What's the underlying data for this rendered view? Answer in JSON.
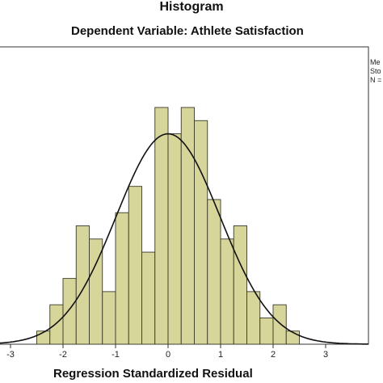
{
  "chart_data": {
    "type": "bar",
    "title": "Histogram",
    "subtitle": "Dependent Variable: Athlete Satisfaction",
    "xlabel": "Regression Standardized Residual",
    "ylabel": "",
    "xlim": [
      -3.25,
      3.6
    ],
    "ylim": [
      0,
      10
    ],
    "x_ticks": [
      "-3",
      "-2",
      "-1",
      "0",
      "1",
      "2",
      "3"
    ],
    "bin_width": 0.25,
    "bin_left_edges": [
      -2.5,
      -2.25,
      -2.0,
      -1.75,
      -1.5,
      -1.25,
      -1.0,
      -0.75,
      -0.5,
      -0.25,
      0.0,
      0.25,
      0.5,
      0.75,
      1.0,
      1.25,
      1.5,
      1.75,
      2.0,
      2.25
    ],
    "values": [
      0.5,
      1.5,
      2.5,
      4.5,
      4,
      2,
      5,
      6,
      3.5,
      9,
      8,
      9,
      8.5,
      5.5,
      4,
      4.5,
      2,
      1,
      1.5,
      0.5
    ],
    "normal_curve": {
      "mean": 0,
      "std": 0.99
    },
    "peak": 8,
    "stats_box": [
      "Me",
      "Sto",
      "N ="
    ],
    "colors": {
      "bar_fill": "#d6d59a",
      "bar_stroke": "#3a3a2a",
      "curve": "#111111",
      "axis": "#333333"
    },
    "grid": false
  }
}
